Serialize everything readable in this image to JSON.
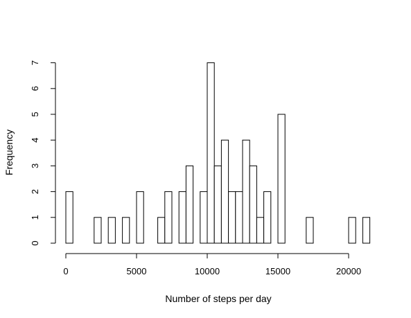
{
  "chart_data": {
    "type": "bar",
    "title": "",
    "xlabel": "Number of steps per day",
    "ylabel": "Frequency",
    "bin_width": 500,
    "bin_starts": [
      0,
      500,
      1000,
      1500,
      2000,
      2500,
      3000,
      3500,
      4000,
      4500,
      5000,
      5500,
      6000,
      6500,
      7000,
      7500,
      8000,
      8500,
      9000,
      9500,
      10000,
      10500,
      11000,
      11500,
      12000,
      12500,
      13000,
      13500,
      14000,
      14500,
      15000,
      15500,
      16000,
      16500,
      17000,
      17500,
      18000,
      18500,
      19000,
      19500,
      20000,
      20500,
      21000
    ],
    "values": [
      2,
      0,
      0,
      0,
      1,
      0,
      1,
      0,
      1,
      0,
      2,
      0,
      0,
      1,
      2,
      0,
      2,
      3,
      0,
      2,
      7,
      3,
      4,
      2,
      2,
      4,
      3,
      1,
      2,
      0,
      5,
      0,
      0,
      0,
      1,
      0,
      0,
      0,
      0,
      0,
      1,
      0,
      1
    ],
    "xlim": [
      0,
      21500
    ],
    "ylim": [
      0,
      7
    ],
    "x_ticks": [
      0,
      5000,
      10000,
      15000,
      20000
    ],
    "x_tick_labels": [
      "0",
      "5000",
      "10000",
      "15000",
      "20000"
    ],
    "y_ticks": [
      0,
      1,
      2,
      3,
      4,
      5,
      6,
      7
    ],
    "y_tick_labels": [
      "0",
      "1",
      "2",
      "3",
      "4",
      "5",
      "6",
      "7"
    ],
    "grid": false,
    "legend": "none"
  }
}
